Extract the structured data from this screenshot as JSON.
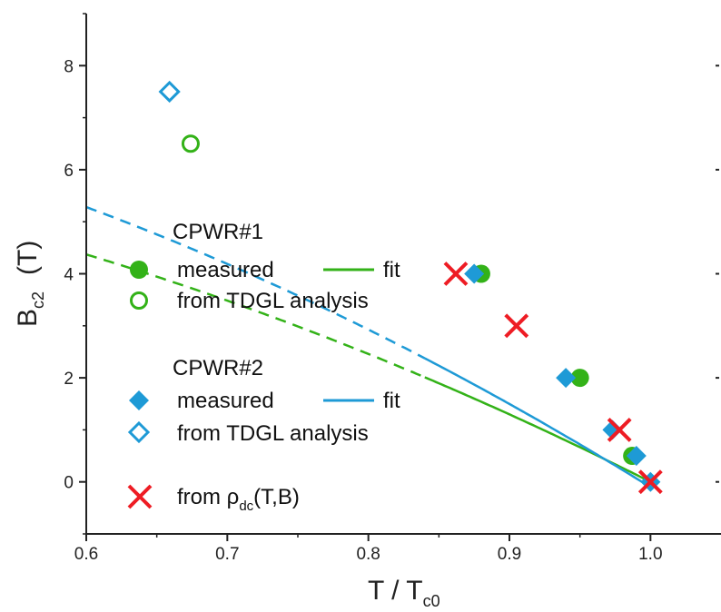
{
  "chart_data": {
    "type": "scatter",
    "xlabel": {
      "main": "T / T",
      "sub": "c0"
    },
    "ylabel": {
      "main": "B",
      "sub": "c2",
      "unit": "(T)"
    },
    "xlim": [
      0.6,
      1.05
    ],
    "ylim": [
      -1,
      9
    ],
    "x_ticks": [
      "0.6",
      "0.7",
      "0.8",
      "0.9",
      "1.0"
    ],
    "y_ticks": [
      "0",
      "2",
      "4",
      "6",
      "8"
    ],
    "grid": false,
    "legend_position": "center-left",
    "colors": {
      "green": "#33b218",
      "blue": "#1e9ad6",
      "red": "#ee1c24"
    },
    "legend": {
      "sample1": "CPWR#1",
      "sample2": "CPWR#2",
      "measured": "measured",
      "fit": "fit",
      "tdgl": "from TDGL analysis",
      "rho_prefix": "from ρ",
      "rho_sub": "dc",
      "rho_suffix": "(T,B)"
    },
    "series": [
      {
        "name": "CPWR#1 measured",
        "marker": "circle-filled",
        "color": "#33b218",
        "x": [
          0.88,
          0.95,
          0.987
        ],
        "y": [
          4,
          2,
          0.5
        ]
      },
      {
        "name": "CPWR#1 from TDGL analysis",
        "marker": "circle-open",
        "color": "#33b218",
        "x": [
          0.674
        ],
        "y": [
          6.5
        ]
      },
      {
        "name": "CPWR#2 measured",
        "marker": "diamond-filled",
        "color": "#1e9ad6",
        "x": [
          0.875,
          0.94,
          0.973,
          0.99,
          1.0
        ],
        "y": [
          4,
          2,
          1,
          0.5,
          0
        ]
      },
      {
        "name": "CPWR#2 from TDGL analysis",
        "marker": "diamond-open",
        "color": "#1e9ad6",
        "x": [
          0.659
        ],
        "y": [
          7.5
        ]
      },
      {
        "name": "from ρdc(T,B)",
        "marker": "x",
        "color": "#ee1c24",
        "x": [
          0.862,
          0.905,
          0.978,
          1.0
        ],
        "y": [
          4,
          3,
          1,
          0
        ]
      }
    ],
    "fits": [
      {
        "name": "CPWR#1 fit",
        "color": "#33b218",
        "form": "parabolic",
        "B0": 6.83,
        "Tc": 1.0,
        "solid_from": 0.84
      },
      {
        "name": "CPWR#2 fit",
        "color": "#1e9ad6",
        "form": "parabolic",
        "B0": 8.31,
        "Tc": 0.994,
        "solid_from": 0.84
      }
    ]
  }
}
